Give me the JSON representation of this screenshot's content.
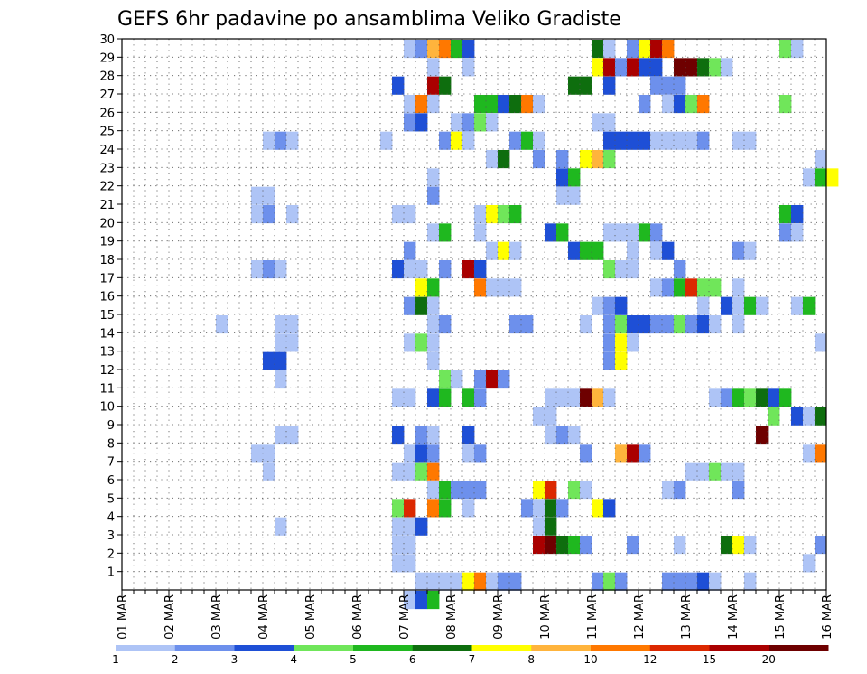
{
  "chart_data": {
    "type": "heatmap",
    "title": "GEFS 6hr padavine po ansamblima Veliko Gradiste",
    "xlabel": "",
    "ylabel": "",
    "x_ticks": [
      "01 MAR",
      "02 MAR",
      "03 MAR",
      "04 MAR",
      "05 MAR",
      "06 MAR",
      "07 MAR",
      "08 MAR",
      "09 MAR",
      "10 MAR",
      "11 MAR",
      "12 MAR",
      "13 MAR",
      "14 MAR",
      "15 MAR",
      "16 MAR"
    ],
    "y_ticks": [
      "1",
      "2",
      "3",
      "4",
      "5",
      "6",
      "7",
      "8",
      "9",
      "10",
      "11",
      "12",
      "13",
      "14",
      "15",
      "16",
      "17",
      "18",
      "19",
      "20",
      "21",
      "22",
      "23",
      "24",
      "25",
      "26",
      "27",
      "28",
      "29",
      "30"
    ],
    "x_range_days": [
      1,
      16
    ],
    "y_range": [
      0,
      30
    ],
    "step_hours": 6,
    "grid": true,
    "legend": {
      "placement": "bottom",
      "labels": [
        "1",
        "2",
        "3",
        "4",
        "5",
        "6",
        "7",
        "8",
        "10",
        "12",
        "15",
        "20"
      ],
      "colors": [
        "#aec4f6",
        "#6d90ec",
        "#1e4fd6",
        "#70e65a",
        "#1fb81f",
        "#0e6e0e",
        "#ffff00",
        "#ffb43c",
        "#ff7800",
        "#dc2800",
        "#aa0000",
        "#6e0000"
      ]
    },
    "cells": [
      [
        29,
        7.0,
        1
      ],
      [
        29,
        7.25,
        2
      ],
      [
        29,
        7.5,
        8
      ],
      [
        29,
        7.75,
        9
      ],
      [
        29,
        8.0,
        5
      ],
      [
        29,
        8.25,
        3
      ],
      [
        29,
        11.0,
        6
      ],
      [
        29,
        11.25,
        1
      ],
      [
        29,
        11.75,
        2
      ],
      [
        29,
        12.0,
        7
      ],
      [
        29,
        12.25,
        11
      ],
      [
        29,
        12.5,
        9
      ],
      [
        29,
        15.0,
        4
      ],
      [
        29,
        15.25,
        1
      ],
      [
        28,
        7.5,
        1
      ],
      [
        28,
        8.25,
        1
      ],
      [
        28,
        11.0,
        7
      ],
      [
        28,
        11.25,
        11
      ],
      [
        28,
        11.5,
        2
      ],
      [
        28,
        11.75,
        11
      ],
      [
        28,
        12.0,
        3
      ],
      [
        28,
        12.25,
        3
      ],
      [
        28,
        12.75,
        12
      ],
      [
        28,
        13.0,
        12
      ],
      [
        28,
        13.25,
        6
      ],
      [
        28,
        13.5,
        4
      ],
      [
        28,
        13.75,
        1
      ],
      [
        27,
        6.75,
        3
      ],
      [
        27,
        7.5,
        11
      ],
      [
        27,
        7.75,
        6
      ],
      [
        27,
        10.5,
        6
      ],
      [
        27,
        10.75,
        6
      ],
      [
        27,
        11.25,
        3
      ],
      [
        27,
        12.25,
        2
      ],
      [
        27,
        12.5,
        2
      ],
      [
        27,
        12.75,
        2
      ],
      [
        26,
        7.0,
        1
      ],
      [
        26,
        7.25,
        9
      ],
      [
        26,
        7.5,
        1
      ],
      [
        26,
        8.5,
        5
      ],
      [
        26,
        8.75,
        5
      ],
      [
        26,
        9.0,
        3
      ],
      [
        26,
        9.25,
        6
      ],
      [
        26,
        9.5,
        9
      ],
      [
        26,
        9.75,
        1
      ],
      [
        26,
        12.0,
        2
      ],
      [
        26,
        12.5,
        1
      ],
      [
        26,
        12.75,
        3
      ],
      [
        26,
        13.0,
        4
      ],
      [
        26,
        13.25,
        9
      ],
      [
        26,
        15.0,
        4
      ],
      [
        25,
        7.0,
        2
      ],
      [
        25,
        7.25,
        3
      ],
      [
        25,
        8.0,
        1
      ],
      [
        25,
        8.25,
        2
      ],
      [
        25,
        8.5,
        4
      ],
      [
        25,
        8.75,
        1
      ],
      [
        25,
        11.0,
        1
      ],
      [
        25,
        11.25,
        1
      ],
      [
        24,
        4.0,
        1
      ],
      [
        24,
        4.25,
        2
      ],
      [
        24,
        4.5,
        1
      ],
      [
        24,
        6.5,
        1
      ],
      [
        24,
        7.75,
        2
      ],
      [
        24,
        8.0,
        7
      ],
      [
        24,
        8.25,
        1
      ],
      [
        24,
        9.25,
        2
      ],
      [
        24,
        9.5,
        5
      ],
      [
        24,
        9.75,
        1
      ],
      [
        24,
        11.25,
        3
      ],
      [
        24,
        11.5,
        3
      ],
      [
        24,
        11.75,
        3
      ],
      [
        24,
        12.0,
        3
      ],
      [
        24,
        12.25,
        1
      ],
      [
        24,
        12.5,
        1
      ],
      [
        24,
        12.75,
        1
      ],
      [
        24,
        13.0,
        1
      ],
      [
        24,
        13.25,
        2
      ],
      [
        24,
        14.0,
        1
      ],
      [
        24,
        14.25,
        1
      ],
      [
        23,
        8.75,
        1
      ],
      [
        23,
        9.0,
        6
      ],
      [
        23,
        9.75,
        2
      ],
      [
        23,
        10.25,
        2
      ],
      [
        23,
        10.75,
        7
      ],
      [
        23,
        11.0,
        8
      ],
      [
        23,
        11.25,
        4
      ],
      [
        23,
        15.75,
        1
      ],
      [
        22,
        7.5,
        1
      ],
      [
        22,
        10.25,
        3
      ],
      [
        22,
        10.5,
        5
      ],
      [
        22,
        15.5,
        1
      ],
      [
        22,
        15.75,
        5
      ],
      [
        22,
        16.0,
        7
      ],
      [
        21,
        3.75,
        1
      ],
      [
        21,
        4.0,
        1
      ],
      [
        21,
        7.5,
        2
      ],
      [
        21,
        10.25,
        1
      ],
      [
        21,
        10.5,
        1
      ],
      [
        20,
        3.75,
        1
      ],
      [
        20,
        4.0,
        2
      ],
      [
        20,
        4.5,
        1
      ],
      [
        20,
        6.75,
        1
      ],
      [
        20,
        7.0,
        1
      ],
      [
        20,
        8.5,
        1
      ],
      [
        20,
        8.75,
        7
      ],
      [
        20,
        9.0,
        4
      ],
      [
        20,
        9.25,
        5
      ],
      [
        20,
        15.0,
        5
      ],
      [
        20,
        15.25,
        3
      ],
      [
        19,
        7.5,
        1
      ],
      [
        19,
        7.75,
        5
      ],
      [
        19,
        8.5,
        1
      ],
      [
        19,
        10.0,
        3
      ],
      [
        19,
        10.25,
        5
      ],
      [
        19,
        11.25,
        1
      ],
      [
        19,
        11.5,
        1
      ],
      [
        19,
        11.75,
        1
      ],
      [
        19,
        12.0,
        5
      ],
      [
        19,
        12.25,
        2
      ],
      [
        19,
        15.0,
        2
      ],
      [
        19,
        15.25,
        1
      ],
      [
        18,
        7.0,
        2
      ],
      [
        18,
        8.75,
        1
      ],
      [
        18,
        9.0,
        7
      ],
      [
        18,
        9.25,
        1
      ],
      [
        18,
        10.5,
        3
      ],
      [
        18,
        10.75,
        5
      ],
      [
        18,
        11.0,
        5
      ],
      [
        18,
        11.75,
        1
      ],
      [
        18,
        12.25,
        1
      ],
      [
        18,
        12.5,
        3
      ],
      [
        18,
        14.0,
        2
      ],
      [
        18,
        14.25,
        1
      ],
      [
        17,
        3.75,
        1
      ],
      [
        17,
        4.0,
        2
      ],
      [
        17,
        4.25,
        1
      ],
      [
        17,
        6.75,
        3
      ],
      [
        17,
        7.0,
        1
      ],
      [
        17,
        7.25,
        1
      ],
      [
        17,
        7.75,
        2
      ],
      [
        17,
        8.25,
        11
      ],
      [
        17,
        8.5,
        3
      ],
      [
        17,
        11.25,
        4
      ],
      [
        17,
        11.5,
        1
      ],
      [
        17,
        11.75,
        1
      ],
      [
        17,
        12.75,
        2
      ],
      [
        16,
        7.25,
        7
      ],
      [
        16,
        7.5,
        5
      ],
      [
        16,
        8.5,
        9
      ],
      [
        16,
        8.75,
        1
      ],
      [
        16,
        9.0,
        1
      ],
      [
        16,
        9.25,
        1
      ],
      [
        16,
        12.25,
        1
      ],
      [
        16,
        12.5,
        2
      ],
      [
        16,
        12.75,
        5
      ],
      [
        16,
        13.0,
        10
      ],
      [
        16,
        13.25,
        4
      ],
      [
        16,
        13.5,
        4
      ],
      [
        16,
        14.0,
        1
      ],
      [
        15,
        7.0,
        2
      ],
      [
        15,
        7.25,
        6
      ],
      [
        15,
        7.5,
        1
      ],
      [
        15,
        11.0,
        1
      ],
      [
        15,
        11.25,
        2
      ],
      [
        15,
        11.5,
        3
      ],
      [
        15,
        13.25,
        1
      ],
      [
        15,
        13.75,
        3
      ],
      [
        15,
        14.0,
        1
      ],
      [
        15,
        14.25,
        5
      ],
      [
        15,
        14.5,
        1
      ],
      [
        15,
        15.25,
        1
      ],
      [
        15,
        15.5,
        5
      ],
      [
        14,
        3.0,
        1
      ],
      [
        14,
        4.25,
        1
      ],
      [
        14,
        4.5,
        1
      ],
      [
        14,
        7.5,
        1
      ],
      [
        14,
        7.75,
        2
      ],
      [
        14,
        9.25,
        2
      ],
      [
        14,
        9.5,
        2
      ],
      [
        14,
        10.75,
        1
      ],
      [
        14,
        11.25,
        2
      ],
      [
        14,
        11.5,
        4
      ],
      [
        14,
        11.75,
        3
      ],
      [
        14,
        12.0,
        3
      ],
      [
        14,
        12.25,
        2
      ],
      [
        14,
        12.5,
        2
      ],
      [
        14,
        12.75,
        4
      ],
      [
        14,
        13.0,
        2
      ],
      [
        14,
        13.25,
        3
      ],
      [
        14,
        13.5,
        1
      ],
      [
        14,
        14.0,
        1
      ],
      [
        13,
        4.25,
        1
      ],
      [
        13,
        4.5,
        1
      ],
      [
        13,
        7.0,
        1
      ],
      [
        13,
        7.25,
        4
      ],
      [
        13,
        7.5,
        1
      ],
      [
        13,
        11.25,
        2
      ],
      [
        13,
        11.5,
        7
      ],
      [
        13,
        11.75,
        1
      ],
      [
        13,
        15.75,
        1
      ],
      [
        12,
        4.0,
        3
      ],
      [
        12,
        4.25,
        3
      ],
      [
        12,
        7.5,
        1
      ],
      [
        12,
        11.25,
        2
      ],
      [
        12,
        11.5,
        7
      ],
      [
        11,
        4.25,
        1
      ],
      [
        11,
        7.75,
        4
      ],
      [
        11,
        8.0,
        1
      ],
      [
        11,
        8.5,
        2
      ],
      [
        11,
        8.75,
        11
      ],
      [
        11,
        9.0,
        2
      ],
      [
        10,
        6.75,
        1
      ],
      [
        10,
        7.0,
        1
      ],
      [
        10,
        7.5,
        3
      ],
      [
        10,
        7.75,
        5
      ],
      [
        10,
        8.25,
        5
      ],
      [
        10,
        8.5,
        2
      ],
      [
        10,
        10.0,
        1
      ],
      [
        10,
        10.25,
        1
      ],
      [
        10,
        10.5,
        1
      ],
      [
        10,
        10.75,
        12
      ],
      [
        10,
        11.0,
        8
      ],
      [
        10,
        11.25,
        1
      ],
      [
        10,
        13.5,
        1
      ],
      [
        10,
        13.75,
        2
      ],
      [
        10,
        14.0,
        5
      ],
      [
        10,
        14.25,
        4
      ],
      [
        10,
        14.5,
        6
      ],
      [
        10,
        14.75,
        3
      ],
      [
        10,
        15.0,
        5
      ],
      [
        9,
        9.75,
        1
      ],
      [
        9,
        10.0,
        1
      ],
      [
        9,
        14.75,
        4
      ],
      [
        9,
        15.25,
        3
      ],
      [
        9,
        15.5,
        1
      ],
      [
        9,
        15.75,
        6
      ],
      [
        8,
        4.25,
        1
      ],
      [
        8,
        4.5,
        1
      ],
      [
        8,
        6.75,
        3
      ],
      [
        8,
        7.25,
        2
      ],
      [
        8,
        7.5,
        1
      ],
      [
        8,
        8.25,
        3
      ],
      [
        8,
        10.0,
        1
      ],
      [
        8,
        10.25,
        2
      ],
      [
        8,
        10.5,
        1
      ],
      [
        8,
        14.5,
        12
      ],
      [
        7,
        3.75,
        1
      ],
      [
        7,
        4.0,
        1
      ],
      [
        7,
        7.0,
        1
      ],
      [
        7,
        7.25,
        3
      ],
      [
        7,
        7.5,
        2
      ],
      [
        7,
        8.25,
        1
      ],
      [
        7,
        8.5,
        2
      ],
      [
        7,
        10.75,
        2
      ],
      [
        7,
        11.5,
        8
      ],
      [
        7,
        11.75,
        11
      ],
      [
        7,
        12.0,
        2
      ],
      [
        7,
        15.5,
        1
      ],
      [
        7,
        15.75,
        9
      ],
      [
        6,
        4.0,
        1
      ],
      [
        6,
        6.75,
        1
      ],
      [
        6,
        7.0,
        1
      ],
      [
        6,
        7.25,
        4
      ],
      [
        6,
        7.5,
        9
      ],
      [
        6,
        13.0,
        1
      ],
      [
        6,
        13.25,
        1
      ],
      [
        6,
        13.5,
        4
      ],
      [
        6,
        13.75,
        1
      ],
      [
        6,
        14.0,
        1
      ],
      [
        5,
        7.5,
        1
      ],
      [
        5,
        7.75,
        5
      ],
      [
        5,
        8.0,
        2
      ],
      [
        5,
        8.25,
        2
      ],
      [
        5,
        8.5,
        2
      ],
      [
        5,
        9.75,
        7
      ],
      [
        5,
        10.0,
        10
      ],
      [
        5,
        10.5,
        4
      ],
      [
        5,
        10.75,
        1
      ],
      [
        5,
        12.5,
        1
      ],
      [
        5,
        12.75,
        2
      ],
      [
        5,
        14.0,
        2
      ],
      [
        4,
        6.75,
        4
      ],
      [
        4,
        7.0,
        10
      ],
      [
        4,
        7.5,
        9
      ],
      [
        4,
        7.75,
        5
      ],
      [
        4,
        8.25,
        1
      ],
      [
        4,
        9.5,
        2
      ],
      [
        4,
        9.75,
        1
      ],
      [
        4,
        10.0,
        6
      ],
      [
        4,
        10.25,
        2
      ],
      [
        4,
        11.0,
        7
      ],
      [
        4,
        11.25,
        3
      ],
      [
        3,
        4.25,
        1
      ],
      [
        3,
        6.75,
        1
      ],
      [
        3,
        7.0,
        1
      ],
      [
        3,
        7.25,
        3
      ],
      [
        3,
        9.75,
        1
      ],
      [
        3,
        10.0,
        6
      ],
      [
        2,
        6.75,
        1
      ],
      [
        2,
        7.0,
        1
      ],
      [
        2,
        9.75,
        11
      ],
      [
        2,
        10.0,
        12
      ],
      [
        2,
        10.25,
        6
      ],
      [
        2,
        10.5,
        5
      ],
      [
        2,
        10.75,
        2
      ],
      [
        2,
        11.75,
        2
      ],
      [
        2,
        12.75,
        1
      ],
      [
        2,
        13.75,
        6
      ],
      [
        2,
        14.0,
        7
      ],
      [
        2,
        14.25,
        1
      ],
      [
        2,
        15.75,
        2
      ],
      [
        1,
        6.75,
        1
      ],
      [
        1,
        7.0,
        1
      ],
      [
        1,
        15.5,
        1
      ],
      [
        0,
        7.25,
        1
      ],
      [
        0,
        7.5,
        1
      ],
      [
        0,
        7.75,
        1
      ],
      [
        0,
        8.0,
        1
      ],
      [
        0,
        8.25,
        7
      ],
      [
        0,
        8.5,
        9
      ],
      [
        0,
        8.75,
        1
      ],
      [
        0,
        9.0,
        2
      ],
      [
        0,
        9.25,
        2
      ],
      [
        0,
        11.0,
        2
      ],
      [
        0,
        11.25,
        4
      ],
      [
        0,
        11.5,
        2
      ],
      [
        0,
        12.5,
        2
      ],
      [
        0,
        12.75,
        2
      ],
      [
        0,
        13.0,
        2
      ],
      [
        0,
        13.25,
        3
      ],
      [
        0,
        13.5,
        1
      ],
      [
        0,
        14.25,
        1
      ],
      [
        -1,
        7.0,
        1
      ],
      [
        -1,
        7.25,
        3
      ],
      [
        -1,
        7.5,
        5
      ]
    ]
  }
}
